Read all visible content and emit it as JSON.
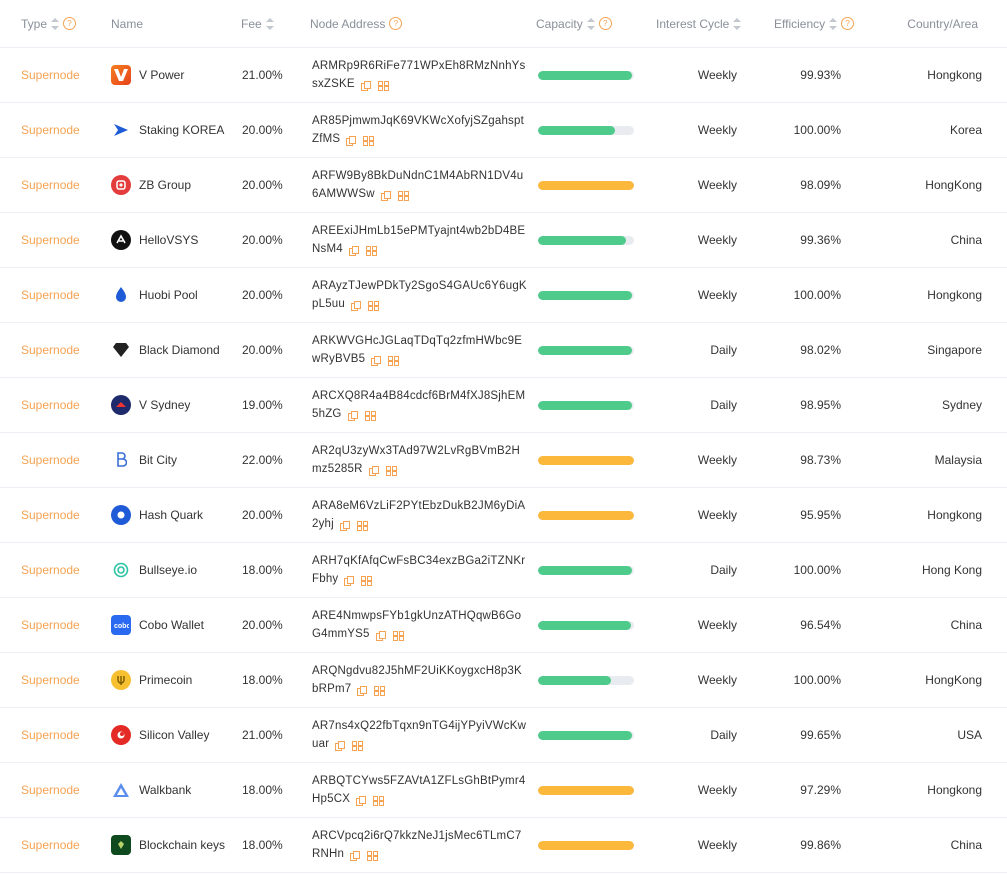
{
  "columns": {
    "type": "Type",
    "name": "Name",
    "fee": "Fee",
    "node_address": "Node Address",
    "capacity": "Capacity",
    "interest_cycle": "Interest Cycle",
    "efficiency": "Efficiency",
    "country": "Country/Area"
  },
  "colors": {
    "accent": "#f5a352",
    "bar_green": "#4ecb8a",
    "bar_orange": "#fbb83a",
    "track": "#e8ecf1"
  },
  "rows": [
    {
      "type": "Supernode",
      "name": "V Power",
      "fee": "21.00%",
      "address": "ARMRp9R6RiFe771WPxEh8RMzNnhYssxZSKE",
      "capacity": 0.98,
      "bar": "green",
      "cycle": "Weekly",
      "efficiency": "99.93%",
      "country": "Hongkong",
      "logo": "v-power-logo"
    },
    {
      "type": "Supernode",
      "name": "Staking KOREA",
      "fee": "20.00%",
      "address": "AR85PjmwmJqK69VKWcXofyjSZgahsptZfMS",
      "capacity": 0.8,
      "bar": "green",
      "cycle": "Weekly",
      "efficiency": "100.00%",
      "country": "Korea",
      "logo": "staking-korea-logo"
    },
    {
      "type": "Supernode",
      "name": "ZB Group",
      "fee": "20.00%",
      "address": "ARFW9By8BkDuNdnC1M4AbRN1DV4u6AMWWSw",
      "capacity": 1.0,
      "bar": "orange",
      "cycle": "Weekly",
      "efficiency": "98.09%",
      "country": "HongKong",
      "logo": "zb-group-logo"
    },
    {
      "type": "Supernode",
      "name": "HelloVSYS",
      "fee": "20.00%",
      "address": "AREExiJHmLb15ePMTyajnt4wb2bD4BENsM4",
      "capacity": 0.92,
      "bar": "green",
      "cycle": "Weekly",
      "efficiency": "99.36%",
      "country": "China",
      "logo": "hellovsys-logo"
    },
    {
      "type": "Supernode",
      "name": "Huobi Pool",
      "fee": "20.00%",
      "address": "ARAyzTJewPDkTy2SgoS4GAUc6Y6ugKpL5uu",
      "capacity": 0.98,
      "bar": "green",
      "cycle": "Weekly",
      "efficiency": "100.00%",
      "country": "Hongkong",
      "logo": "huobi-pool-logo"
    },
    {
      "type": "Supernode",
      "name": "Black Diamond",
      "fee": "20.00%",
      "address": "ARKWVGHcJGLaqTDqTq2zfmHWbc9EwRyBVB5",
      "capacity": 0.98,
      "bar": "green",
      "cycle": "Daily",
      "efficiency": "98.02%",
      "country": "Singapore",
      "logo": "black-diamond-logo"
    },
    {
      "type": "Supernode",
      "name": "V Sydney",
      "fee": "19.00%",
      "address": "ARCXQ8R4a4B84cdcf6BrM4fXJ8SjhEM5hZG",
      "capacity": 0.98,
      "bar": "green",
      "cycle": "Daily",
      "efficiency": "98.95%",
      "country": "Sydney",
      "logo": "v-sydney-logo"
    },
    {
      "type": "Supernode",
      "name": "Bit City",
      "fee": "22.00%",
      "address": "AR2qU3zyWx3TAd97W2LvRgBVmB2Hmz5285R",
      "capacity": 1.0,
      "bar": "orange",
      "cycle": "Weekly",
      "efficiency": "98.73%",
      "country": "Malaysia",
      "logo": "bit-city-logo"
    },
    {
      "type": "Supernode",
      "name": "Hash Quark",
      "fee": "20.00%",
      "address": "ARA8eM6VzLiF2PYtEbzDukB2JM6yDiA2yhj",
      "capacity": 1.0,
      "bar": "orange",
      "cycle": "Weekly",
      "efficiency": "95.95%",
      "country": "Hongkong",
      "logo": "hash-quark-logo"
    },
    {
      "type": "Supernode",
      "name": "Bullseye.io",
      "fee": "18.00%",
      "address": "ARH7qKfAfqCwFsBC34exzBGa2iTZNKrFbhy",
      "capacity": 0.98,
      "bar": "green",
      "cycle": "Daily",
      "efficiency": "100.00%",
      "country": "Hong Kong",
      "logo": "bullseye-logo"
    },
    {
      "type": "Supernode",
      "name": "Cobo Wallet",
      "fee": "20.00%",
      "address": "ARE4NmwpsFYb1gkUnzATHQqwB6GoG4mmYS5",
      "capacity": 0.97,
      "bar": "green",
      "cycle": "Weekly",
      "efficiency": "96.54%",
      "country": "China",
      "logo": "cobo-wallet-logo"
    },
    {
      "type": "Supernode",
      "name": "Primecoin",
      "fee": "18.00%",
      "address": "ARQNgdvu82J5hMF2UiKKoygxcH8p3KbRPm7",
      "capacity": 0.76,
      "bar": "green",
      "cycle": "Weekly",
      "efficiency": "100.00%",
      "country": "HongKong",
      "logo": "primecoin-logo"
    },
    {
      "type": "Supernode",
      "name": "Silicon Valley",
      "fee": "21.00%",
      "address": "AR7ns4xQ22fbTqxn9nTG4ijYPyiVWcKwuar",
      "capacity": 0.98,
      "bar": "green",
      "cycle": "Daily",
      "efficiency": "99.65%",
      "country": "USA",
      "logo": "silicon-valley-logo"
    },
    {
      "type": "Supernode",
      "name": "Walkbank",
      "fee": "18.00%",
      "address": "ARBQTCYws5FZAVtA1ZFLsGhBtPymr4Hp5CX",
      "capacity": 1.0,
      "bar": "orange",
      "cycle": "Weekly",
      "efficiency": "97.29%",
      "country": "Hongkong",
      "logo": "walkbank-logo"
    },
    {
      "type": "Supernode",
      "name": "Blockchain keys",
      "fee": "18.00%",
      "address": "ARCVpcq2i6rQ7kkzNeJ1jsMec6TLmC7RNHn",
      "capacity": 1.0,
      "bar": "orange",
      "cycle": "Weekly",
      "efficiency": "99.86%",
      "country": "China",
      "logo": "blockchain-keys-logo"
    }
  ]
}
